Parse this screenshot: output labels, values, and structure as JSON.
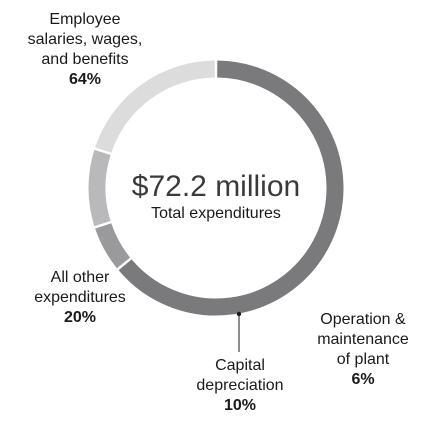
{
  "chart_data": {
    "type": "pie",
    "style": "donut",
    "center_total": "$72.2 million",
    "center_label": "Total expenditures",
    "slices": [
      {
        "label": "Employee\nsalaries, wages,\nand benefits",
        "percent_label": "64%",
        "value": 64,
        "color": "#7a7a7c"
      },
      {
        "label": "Operation &\nmaintenance\nof plant",
        "percent_label": "6%",
        "value": 6,
        "color": "#9a9a9c"
      },
      {
        "label": "Capital\ndepreciation",
        "percent_label": "10%",
        "value": 10,
        "color": "#b9b9bb"
      },
      {
        "label": "All other\nexpenditures",
        "percent_label": "20%",
        "value": 20,
        "color": "#dcdcdc"
      }
    ]
  }
}
